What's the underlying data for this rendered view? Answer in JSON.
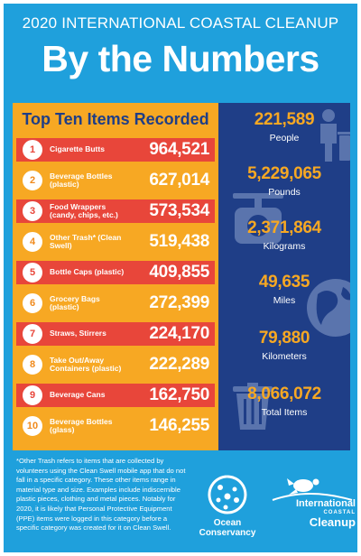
{
  "header": {
    "supertitle": "2020 INTERNATIONAL COASTAL CLEANUP",
    "title": "By the Numbers"
  },
  "top_ten": {
    "title": "Top Ten Items Recorded",
    "items": [
      {
        "rank": "1",
        "label": "Cigarette Butts",
        "value": "964,521"
      },
      {
        "rank": "2",
        "label": "Beverage Bottles (plastic)",
        "value": "627,014"
      },
      {
        "rank": "3",
        "label": "Food Wrappers (candy, chips, etc.)",
        "value": "573,534"
      },
      {
        "rank": "4",
        "label": "Other Trash* (Clean Swell)",
        "value": "519,438"
      },
      {
        "rank": "5",
        "label": "Bottle Caps (plastic)",
        "value": "409,855"
      },
      {
        "rank": "6",
        "label": "Grocery Bags (plastic)",
        "value": "272,399"
      },
      {
        "rank": "7",
        "label": "Straws, Stirrers",
        "value": "224,170"
      },
      {
        "rank": "8",
        "label": "Take Out/Away Containers (plastic)",
        "value": "222,289"
      },
      {
        "rank": "9",
        "label": "Beverage Cans",
        "value": "162,750"
      },
      {
        "rank": "10",
        "label": "Beverage Bottles (glass)",
        "value": "146,255"
      }
    ]
  },
  "stats": [
    {
      "value": "221,589",
      "label": "People",
      "icon": "person-trash-icon"
    },
    {
      "value": "5,229,065",
      "label": "Pounds",
      "icon": "scale-icon"
    },
    {
      "value": "2,371,864",
      "label": "Kilograms",
      "icon": "scale-icon"
    },
    {
      "value": "49,635",
      "label": "Miles",
      "icon": "globe-icon"
    },
    {
      "value": "79,880",
      "label": "Kilometers",
      "icon": "globe-icon"
    },
    {
      "value": "8,066,072",
      "label": "Total Items",
      "icon": "trash-can-icon"
    }
  ],
  "footnote": "*Other Trash refers to items that are collected by volunteers using the Clean Swell mobile app that do not fall in a specific category. These other items range in material type and size. Examples include indiscernible plastic pieces, clothing and metal pieces. Notably for 2020, it is likely that Personal Protective Equipment (PPE) items were logged in this category before a specific category was created for it on Clean Swell.",
  "logos": {
    "ocean_conservancy_line1": "Ocean",
    "ocean_conservancy_line2": "Conservancy",
    "icc_line1": "International",
    "icc_line2": "COASTAL",
    "icc_line3": "Cleanup"
  },
  "colors": {
    "background": "#1fa0dc",
    "orange": "#f7a823",
    "red": "#e8463a",
    "navy": "#1f3e87"
  }
}
